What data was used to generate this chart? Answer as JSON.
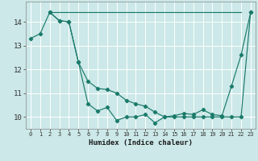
{
  "title": "",
  "xlabel": "Humidex (Indice chaleur)",
  "ylabel": "",
  "background_color": "#cce8e8",
  "grid_color": "#ffffff",
  "line_color": "#1a7a6a",
  "xlim": [
    -0.5,
    23.5
  ],
  "ylim": [
    9.5,
    14.85
  ],
  "xticks": [
    0,
    1,
    2,
    3,
    4,
    5,
    6,
    7,
    8,
    9,
    10,
    11,
    12,
    13,
    14,
    15,
    16,
    17,
    18,
    19,
    20,
    21,
    22,
    23
  ],
  "yticks": [
    10,
    11,
    12,
    13,
    14
  ],
  "line1_x": [
    0,
    1,
    2,
    3,
    4,
    5,
    6,
    7,
    8,
    9,
    10,
    11,
    12,
    13,
    14,
    15,
    16,
    17,
    18,
    19,
    20,
    21,
    22,
    23
  ],
  "line1_y": [
    13.3,
    13.5,
    14.4,
    14.05,
    14.0,
    12.3,
    10.55,
    10.25,
    10.4,
    9.85,
    10.0,
    10.0,
    10.1,
    9.75,
    10.0,
    10.05,
    10.15,
    10.1,
    10.3,
    10.1,
    10.05,
    11.3,
    12.6,
    14.4
  ],
  "line2_x": [
    2,
    22
  ],
  "line2_y": [
    14.4,
    14.4
  ],
  "line3_x": [
    2,
    3,
    4,
    5,
    6,
    7,
    8,
    9,
    10,
    11,
    12,
    13,
    14,
    15,
    16,
    17,
    18,
    19,
    20,
    21,
    22,
    23
  ],
  "line3_y": [
    14.4,
    14.05,
    14.0,
    12.3,
    11.5,
    11.2,
    11.15,
    11.0,
    10.7,
    10.55,
    10.45,
    10.2,
    10.0,
    10.0,
    10.0,
    10.0,
    10.0,
    10.0,
    10.0,
    10.0,
    10.0,
    14.4
  ],
  "xtick_fontsize": 5.0,
  "ytick_fontsize": 6.5,
  "xlabel_fontsize": 6.5
}
